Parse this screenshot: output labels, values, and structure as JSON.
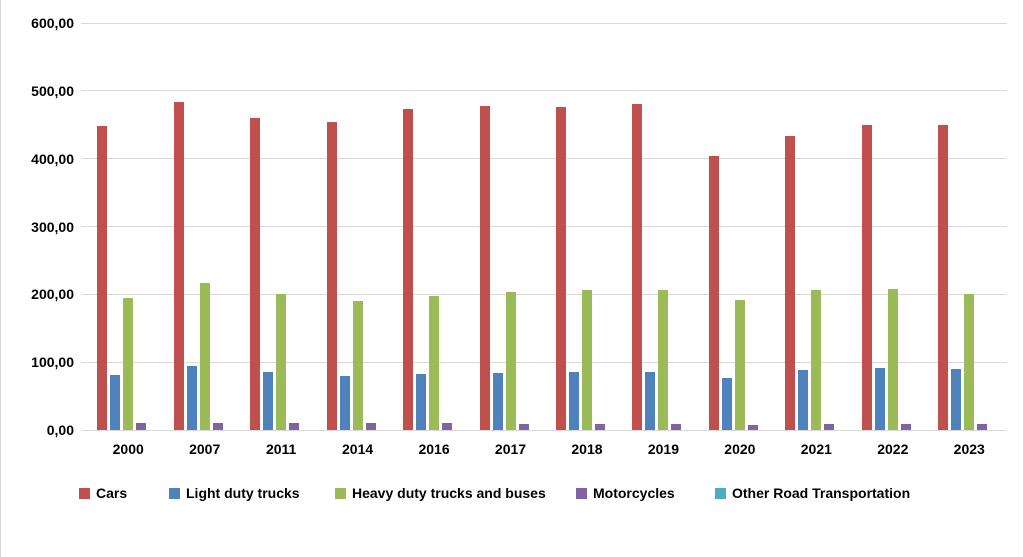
{
  "chart_data": {
    "type": "bar",
    "title": "",
    "xlabel": "",
    "ylabel": "",
    "grid": true,
    "legend_position": "bottom",
    "categories": [
      "2000",
      "2007",
      "2011",
      "2014",
      "2016",
      "2017",
      "2018",
      "2019",
      "2020",
      "2021",
      "2022",
      "2023"
    ],
    "series": [
      {
        "name": "Cars",
        "color": "#C0504D",
        "values": [
          448,
          483,
          460,
          454,
          473,
          478,
          476,
          481,
          404,
          434,
          449,
          449
        ]
      },
      {
        "name": "Light duty trucks",
        "color": "#4F81BD",
        "values": [
          81,
          95,
          86,
          79,
          82,
          84,
          85,
          86,
          77,
          89,
          91,
          90
        ]
      },
      {
        "name": "Heavy duty trucks and buses",
        "color": "#9BBB59",
        "values": [
          195,
          216,
          201,
          190,
          198,
          204,
          206,
          206,
          192,
          206,
          208,
          200
        ]
      },
      {
        "name": "Motorcycles",
        "color": "#8064A2",
        "values": [
          10,
          10,
          10,
          10,
          10,
          9,
          9,
          9,
          8,
          9,
          9,
          9
        ]
      },
      {
        "name": "Other Road Transportation",
        "color": "#4BACC6",
        "values": [
          0,
          0,
          0,
          0,
          0,
          0,
          0,
          0,
          0,
          0,
          0,
          0
        ]
      }
    ],
    "y_axis": {
      "min": 0,
      "max": 600,
      "step": 100,
      "tick_labels": [
        "0,00",
        "100,00",
        "200,00",
        "300,00",
        "400,00",
        "500,00",
        "600,00"
      ]
    },
    "colors": {
      "gridline": "#D9D9D9",
      "text": "#000000",
      "background": "#FFFFFF"
    }
  }
}
